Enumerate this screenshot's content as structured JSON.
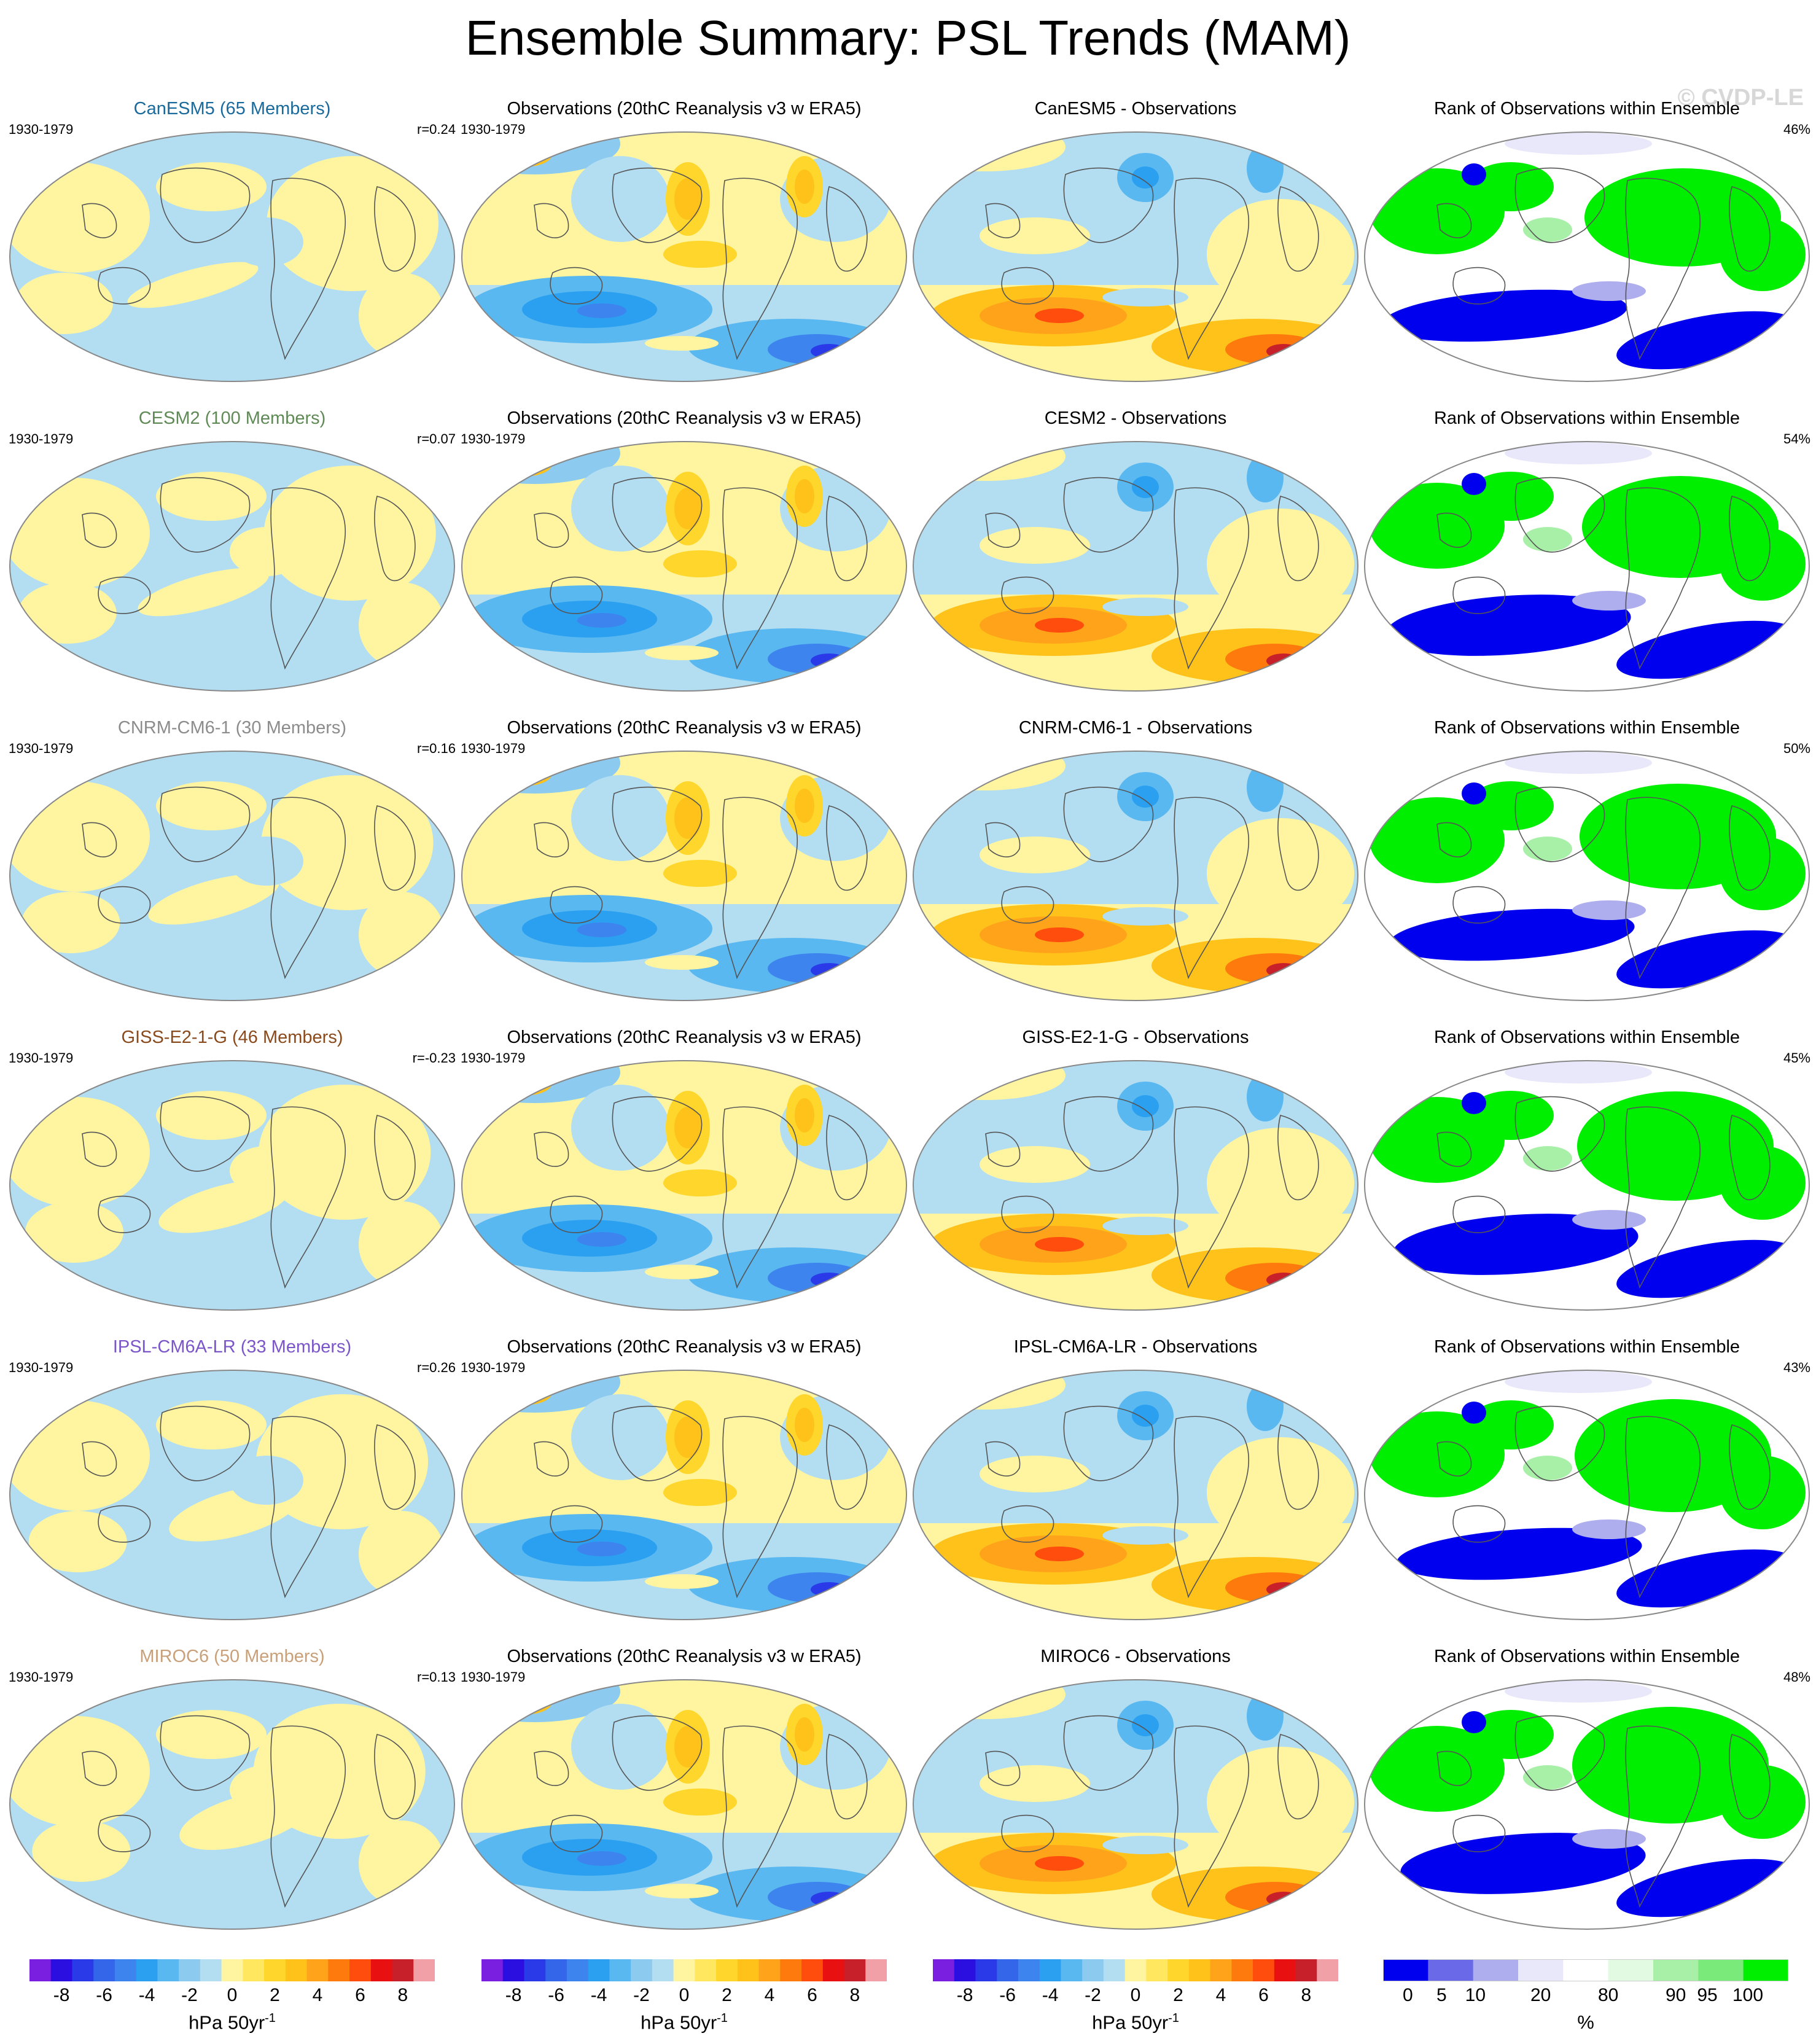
{
  "title": "Ensemble Summary: PSL Trends (MAM)",
  "watermark": "© CVDP-LE",
  "obs_title": "Observations (20thC Reanalysis v3 w ERA5)",
  "rank_title": "Rank of Observations within Ensemble",
  "period": "1930-1979",
  "chart_data": {
    "type": "heatmap",
    "projection": "global map (Robinson-like), Pacific-centered",
    "variable": "PSL trend",
    "season": "MAM",
    "rows": [
      {
        "model": "CanESM5",
        "ensemble_label": "CanESM5 (65 Members)",
        "name_color": "#1a6a9c",
        "r": "r=0.24",
        "diff_title": "CanESM5 - Observations",
        "rank_pct": "46%"
      },
      {
        "model": "CESM2",
        "ensemble_label": "CESM2 (100 Members)",
        "name_color": "#5f8a56",
        "r": "r=0.07",
        "diff_title": "CESM2 - Observations",
        "rank_pct": "54%"
      },
      {
        "model": "CNRM-CM6-1",
        "ensemble_label": "CNRM-CM6-1 (30 Members)",
        "name_color": "#8c8c8c",
        "r": "r=0.16",
        "diff_title": "CNRM-CM6-1 - Observations",
        "rank_pct": "50%"
      },
      {
        "model": "GISS-E2-1-G",
        "ensemble_label": "GISS-E2-1-G (46 Members)",
        "name_color": "#8a4a1c",
        "r": "r=-0.23",
        "diff_title": "GISS-E2-1-G - Observations",
        "rank_pct": "45%"
      },
      {
        "model": "IPSL-CM6A-LR",
        "ensemble_label": "IPSL-CM6A-LR (33 Members)",
        "name_color": "#7b56c9",
        "r": "r=0.26",
        "diff_title": "IPSL-CM6A-LR - Observations",
        "rank_pct": "43%"
      },
      {
        "model": "MIROC6",
        "ensemble_label": "MIROC6 (50 Members)",
        "name_color": "#c8a07a",
        "r": "r=0.13",
        "diff_title": "MIROC6 - Observations",
        "rank_pct": "48%"
      }
    ],
    "trend_colorbar": {
      "unit_label": "hPa 50yr",
      "unit_superscript": "-1",
      "tick_labels": [
        "-8",
        "-6",
        "-4",
        "-2",
        "0",
        "2",
        "4",
        "6",
        "8"
      ],
      "levels": [
        -9,
        -8,
        -7,
        -6,
        -5,
        -4,
        -3,
        -2,
        -1,
        0,
        1,
        2,
        3,
        4,
        5,
        6,
        7,
        8,
        9
      ],
      "colors": [
        "#7a1fe0",
        "#2a0fe0",
        "#2a3ae8",
        "#3366e8",
        "#3d84ee",
        "#2b9ff0",
        "#5ab8f0",
        "#8ccbef",
        "#b3def2",
        "#fff5a0",
        "#ffe860",
        "#ffd62b",
        "#ffc21a",
        "#ffa31a",
        "#ff7a0d",
        "#ff4d0d",
        "#e81010",
        "#c8202a",
        "#f2a0a8"
      ]
    },
    "rank_colorbar": {
      "unit_label": "%",
      "tick_labels": [
        "0",
        "5",
        "10",
        "20",
        "80",
        "90",
        "95",
        "100"
      ],
      "colors": [
        "#0000ee",
        "#6a6ae8",
        "#aeaeee",
        "#e8e8fa",
        "#ffffff",
        "#e2fae2",
        "#a8f0a8",
        "#7aea7a",
        "#00ee00"
      ]
    },
    "diff_colorbar_unit": "hPa 50yr"
  }
}
